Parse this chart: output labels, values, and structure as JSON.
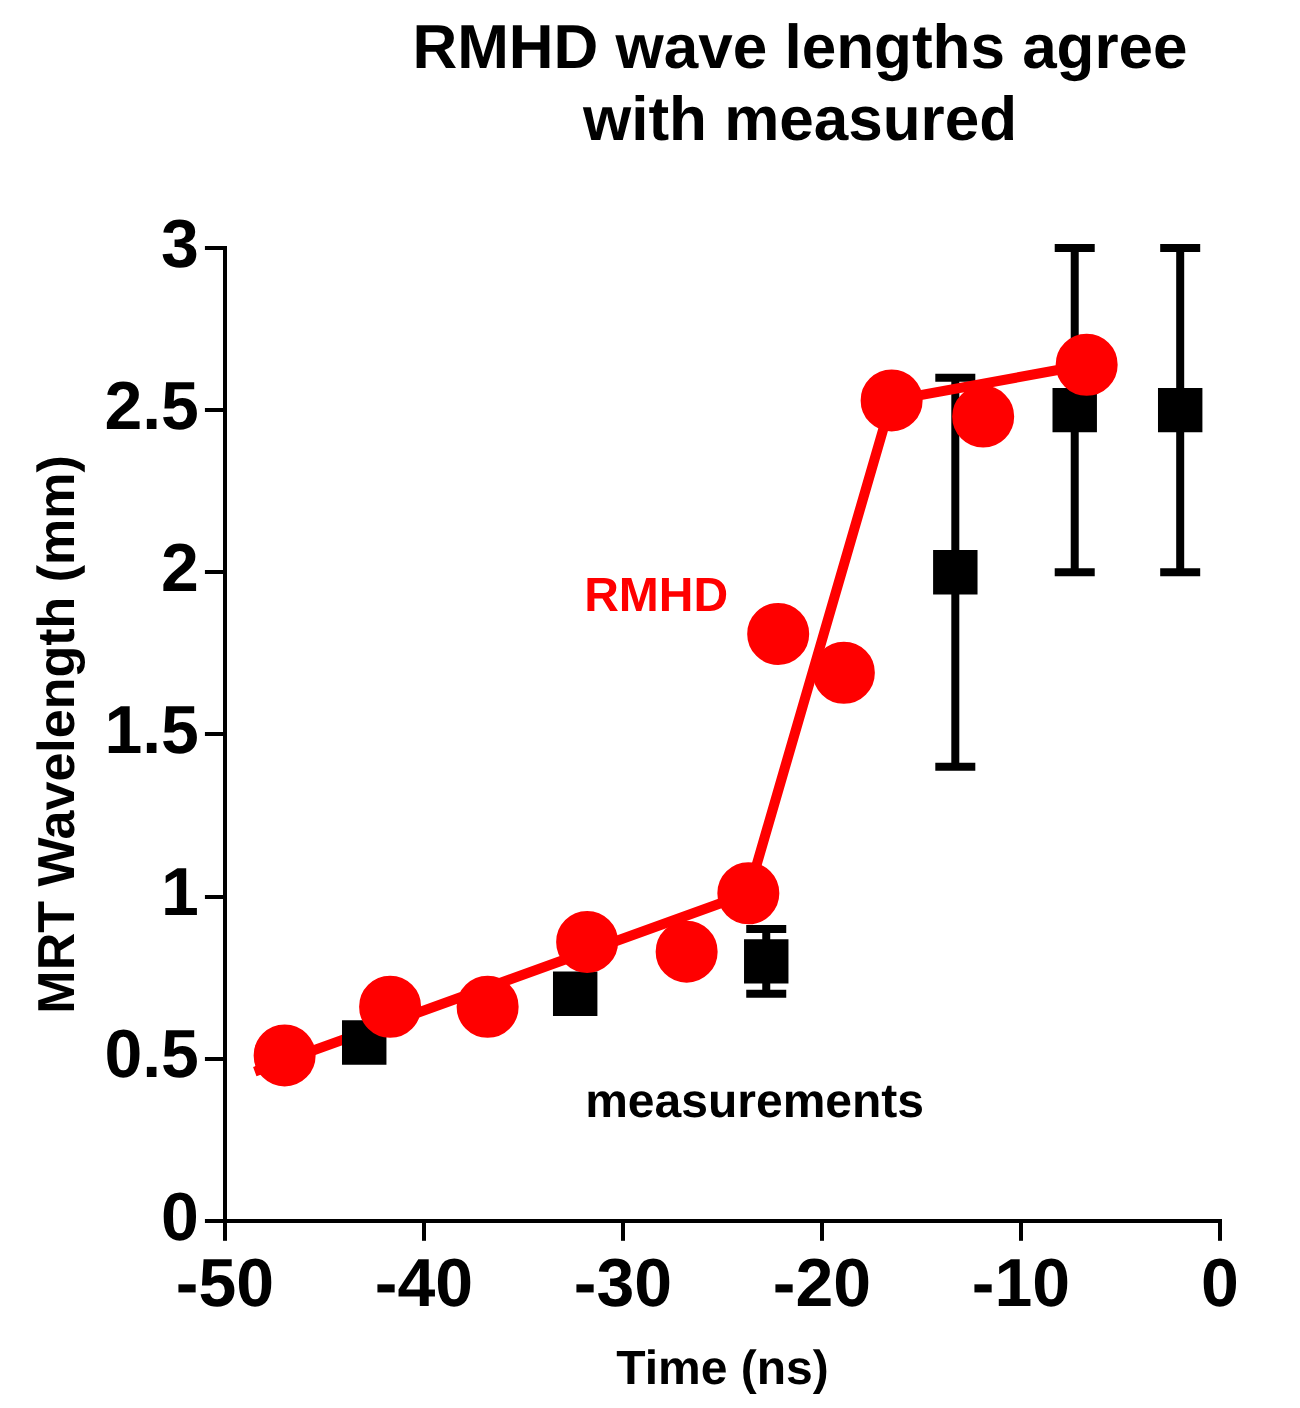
{
  "chart_data": {
    "type": "scatter",
    "title": "RMHD wave lengths agree with measured",
    "xlabel": "Time (ns)",
    "ylabel": "MRT Wavelength (mm)",
    "xlim": [
      -50,
      0
    ],
    "xticks": [
      -50,
      -40,
      -30,
      -20,
      -10,
      0
    ],
    "ylim": [
      0,
      3
    ],
    "yticks": [
      0,
      0.5,
      1,
      1.5,
      2,
      2.5,
      3
    ],
    "grid": false,
    "legend": false,
    "series": [
      {
        "name": "RMHD",
        "marker": "circle",
        "color": "#ff0000",
        "x": [
          -47,
          -41.7,
          -36.8,
          -31.8,
          -26.8,
          -23.7,
          -22.2,
          -18.9,
          -16.5,
          -11.9,
          -6.7
        ],
        "values": [
          0.51,
          0.66,
          0.66,
          0.86,
          0.83,
          1.01,
          1.81,
          1.69,
          2.53,
          2.48,
          2.64
        ]
      },
      {
        "type": "line",
        "marker": "none",
        "line_style": "solid",
        "color": "#ff0000",
        "x": [
          -48.5,
          -23.7,
          -16.5,
          -6.7
        ],
        "values": [
          0.46,
          1.01,
          2.53,
          2.64
        ]
      },
      {
        "name": "measurements",
        "marker": "square",
        "color": "#000000",
        "x": [
          -43,
          -32.4,
          -22.8,
          -13.3,
          -7.3,
          -2
        ],
        "values": [
          0.55,
          0.7,
          0.8,
          2.0,
          2.5,
          2.5
        ],
        "errors": [
          null,
          null,
          0.1,
          0.6,
          0.5,
          0.5
        ]
      }
    ]
  }
}
